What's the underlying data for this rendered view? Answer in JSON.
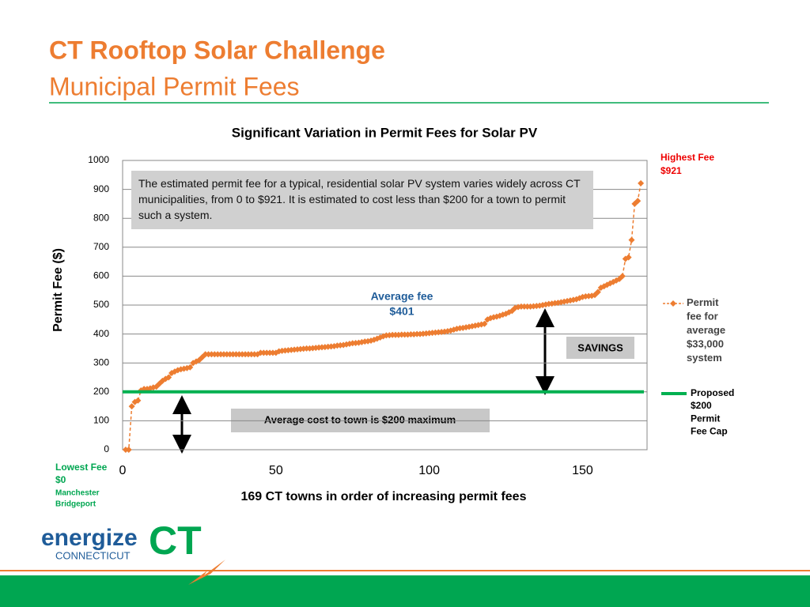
{
  "header": {
    "title": "CT Rooftop Solar Challenge",
    "subtitle": "Municipal Permit Fees"
  },
  "logo": {
    "word": "energize",
    "sub": "CONNECTICUT",
    "mark": "CT"
  },
  "chart_data": {
    "type": "line",
    "title": "Significant Variation in Permit Fees for Solar PV",
    "xlabel": "169 CT towns in order of increasing permit fees",
    "ylabel": "Permit Fee ($)",
    "xlim": [
      0,
      170
    ],
    "xticks": [
      0,
      50,
      100,
      150
    ],
    "ylim": [
      0,
      1000
    ],
    "yticks": [
      0,
      100,
      200,
      300,
      400,
      500,
      600,
      700,
      800,
      900,
      1000
    ],
    "grid": true,
    "x": [
      1,
      2,
      3,
      4,
      5,
      6,
      7,
      8,
      9,
      10,
      11,
      12,
      13,
      14,
      15,
      16,
      17,
      18,
      19,
      20,
      21,
      22,
      23,
      24,
      25,
      26,
      27,
      28,
      29,
      30,
      31,
      32,
      33,
      34,
      35,
      36,
      37,
      38,
      39,
      40,
      41,
      42,
      43,
      44,
      45,
      46,
      47,
      48,
      49,
      50,
      51,
      52,
      53,
      54,
      55,
      56,
      57,
      58,
      59,
      60,
      61,
      62,
      63,
      64,
      65,
      66,
      67,
      68,
      69,
      70,
      71,
      72,
      73,
      74,
      75,
      76,
      77,
      78,
      79,
      80,
      81,
      82,
      83,
      84,
      85,
      86,
      87,
      88,
      89,
      90,
      91,
      92,
      93,
      94,
      95,
      96,
      97,
      98,
      99,
      100,
      101,
      102,
      103,
      104,
      105,
      106,
      107,
      108,
      109,
      110,
      111,
      112,
      113,
      114,
      115,
      116,
      117,
      118,
      119,
      120,
      121,
      122,
      123,
      124,
      125,
      126,
      127,
      128,
      129,
      130,
      131,
      132,
      133,
      134,
      135,
      136,
      137,
      138,
      139,
      140,
      141,
      142,
      143,
      144,
      145,
      146,
      147,
      148,
      149,
      150,
      151,
      152,
      153,
      154,
      155,
      156,
      157,
      158,
      159,
      160,
      161,
      162,
      163,
      164,
      165,
      166,
      167,
      168,
      169
    ],
    "series": [
      {
        "name": "Permit fee for average $33,000 system",
        "color": "#ed7d31",
        "values": [
          0,
          0,
          150,
          165,
          170,
          205,
          210,
          210,
          212,
          215,
          218,
          228,
          238,
          245,
          250,
          265,
          270,
          275,
          278,
          280,
          282,
          285,
          300,
          305,
          310,
          320,
          330,
          330,
          330,
          330,
          330,
          330,
          330,
          330,
          330,
          330,
          330,
          330,
          330,
          330,
          330,
          330,
          330,
          330,
          335,
          335,
          335,
          335,
          335,
          335,
          340,
          342,
          343,
          344,
          345,
          346,
          347,
          348,
          349,
          350,
          350,
          351,
          352,
          353,
          354,
          355,
          356,
          357,
          358,
          360,
          361,
          362,
          364,
          366,
          368,
          369,
          370,
          372,
          374,
          375,
          377,
          380,
          384,
          388,
          392,
          395,
          396,
          397,
          397,
          397,
          398,
          398,
          398,
          399,
          399,
          400,
          400,
          401,
          402,
          403,
          404,
          405,
          406,
          407,
          408,
          410,
          412,
          415,
          418,
          420,
          421,
          423,
          425,
          427,
          429,
          431,
          433,
          435,
          450,
          455,
          458,
          460,
          463,
          467,
          470,
          475,
          480,
          490,
          493,
          495,
          495,
          495,
          495,
          496,
          497,
          498,
          500,
          502,
          504,
          505,
          507,
          508,
          510,
          512,
          514,
          516,
          518,
          520,
          524,
          528,
          530,
          531,
          532,
          535,
          545,
          560,
          565,
          570,
          575,
          580,
          585,
          590,
          600,
          660,
          665,
          725,
          850,
          860,
          921
        ]
      },
      {
        "name": "Proposed $200 Permit Fee Cap",
        "color": "#00b050",
        "value": 200
      }
    ],
    "annotations": {
      "box": "The estimated permit fee for a typical, residential solar PV system varies widely across CT municipalities, from 0 to $921. It is estimated to cost less than $200 for a town to permit such a system.",
      "highest": [
        "Highest Fee",
        "$921"
      ],
      "lowest": [
        "Lowest Fee",
        "$0",
        "Manchester",
        "Bridgeport"
      ],
      "average": [
        "Average fee",
        "$401"
      ],
      "savings": "SAVINGS",
      "cost": "Average cost to town is $200 maximum"
    }
  }
}
